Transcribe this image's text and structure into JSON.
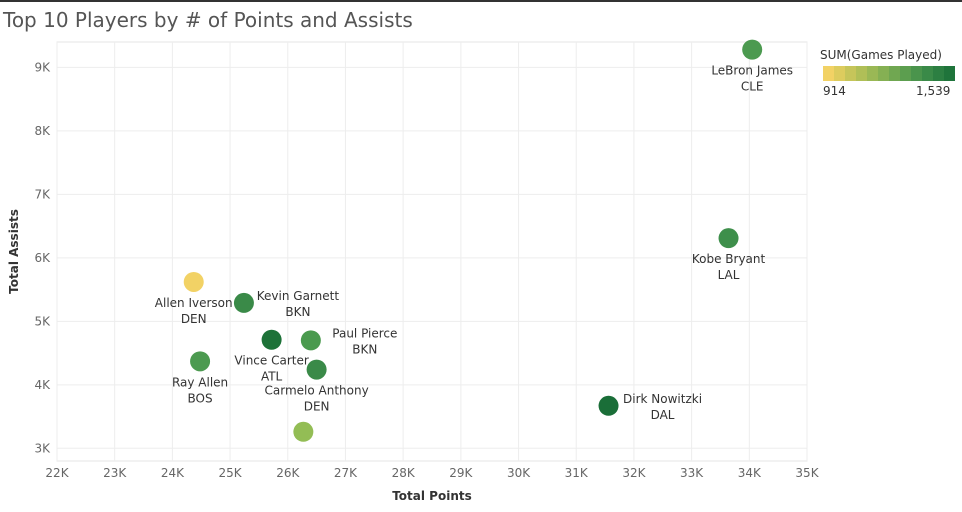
{
  "chart_data": {
    "type": "scatter",
    "title": "Top 10 Players by # of Points and Assists",
    "xlabel": "Total Points",
    "ylabel": "Total Assists",
    "xlim": [
      22000,
      35000
    ],
    "ylim": [
      2800,
      9400
    ],
    "xticks": [
      22000,
      23000,
      24000,
      25000,
      26000,
      27000,
      28000,
      29000,
      30000,
      31000,
      32000,
      33000,
      34000,
      35000
    ],
    "xtick_labels": [
      "22K",
      "23K",
      "24K",
      "25K",
      "26K",
      "27K",
      "28K",
      "29K",
      "30K",
      "31K",
      "32K",
      "33K",
      "34K",
      "35K"
    ],
    "yticks": [
      3000,
      4000,
      5000,
      6000,
      7000,
      8000,
      9000
    ],
    "ytick_labels": [
      "3K",
      "4K",
      "5K",
      "6K",
      "7K",
      "8K",
      "9K"
    ],
    "grid": true,
    "points": [
      {
        "x": 34050,
        "y": 9280,
        "games": 1200,
        "color": "#4c9a50",
        "label1": "LeBron James",
        "label2": "CLE",
        "label_pos": "below"
      },
      {
        "x": 33640,
        "y": 6310,
        "games": 1350,
        "color": "#3e8f4b",
        "label1": "Kobe Bryant",
        "label2": "LAL",
        "label_pos": "below"
      },
      {
        "x": 31560,
        "y": 3670,
        "games": 1520,
        "color": "#1a6e38",
        "label1": "Dirk Nowitzki",
        "label2": "DAL",
        "label_pos": "right"
      },
      {
        "x": 24370,
        "y": 5620,
        "games": 914,
        "color": "#f2d265",
        "label1": "Allen Iverson",
        "label2": "DEN",
        "label_pos": "below"
      },
      {
        "x": 25240,
        "y": 5290,
        "games": 1470,
        "color": "#3a8a48",
        "label1": "Kevin Garnett",
        "label2": "BKN",
        "label_pos": "right"
      },
      {
        "x": 25720,
        "y": 4710,
        "games": 1539,
        "color": "#1d7238",
        "label1": "Vince Carter",
        "label2": "ATL",
        "label_pos": "below"
      },
      {
        "x": 26400,
        "y": 4700,
        "games": 1300,
        "color": "#4a9a4e",
        "label1": "Paul Pierce",
        "label2": "BKN",
        "label_pos": "right"
      },
      {
        "x": 26500,
        "y": 4240,
        "games": 1400,
        "color": "#3a8a48",
        "label1": "Carmelo Anthony",
        "label2": "DEN",
        "label_pos": "below"
      },
      {
        "x": 24480,
        "y": 4370,
        "games": 1250,
        "color": "#4c9a50",
        "label1": "Ray Allen",
        "label2": "BOS",
        "label_pos": "below"
      },
      {
        "x": 26270,
        "y": 3260,
        "games": 1100,
        "color": "#93bd55",
        "label1": "",
        "label2": "",
        "label_pos": "none"
      }
    ]
  },
  "legend": {
    "title": "SUM(Games Played)",
    "min_label": "914",
    "max_label": "1,539",
    "colors": [
      "#f2d265",
      "#ddcc5e",
      "#c6c55a",
      "#b0bf57",
      "#9ab855",
      "#85b053",
      "#70a751",
      "#5c9e4f",
      "#4a944c",
      "#3a8a48",
      "#2c7f42",
      "#1f743b"
    ]
  }
}
